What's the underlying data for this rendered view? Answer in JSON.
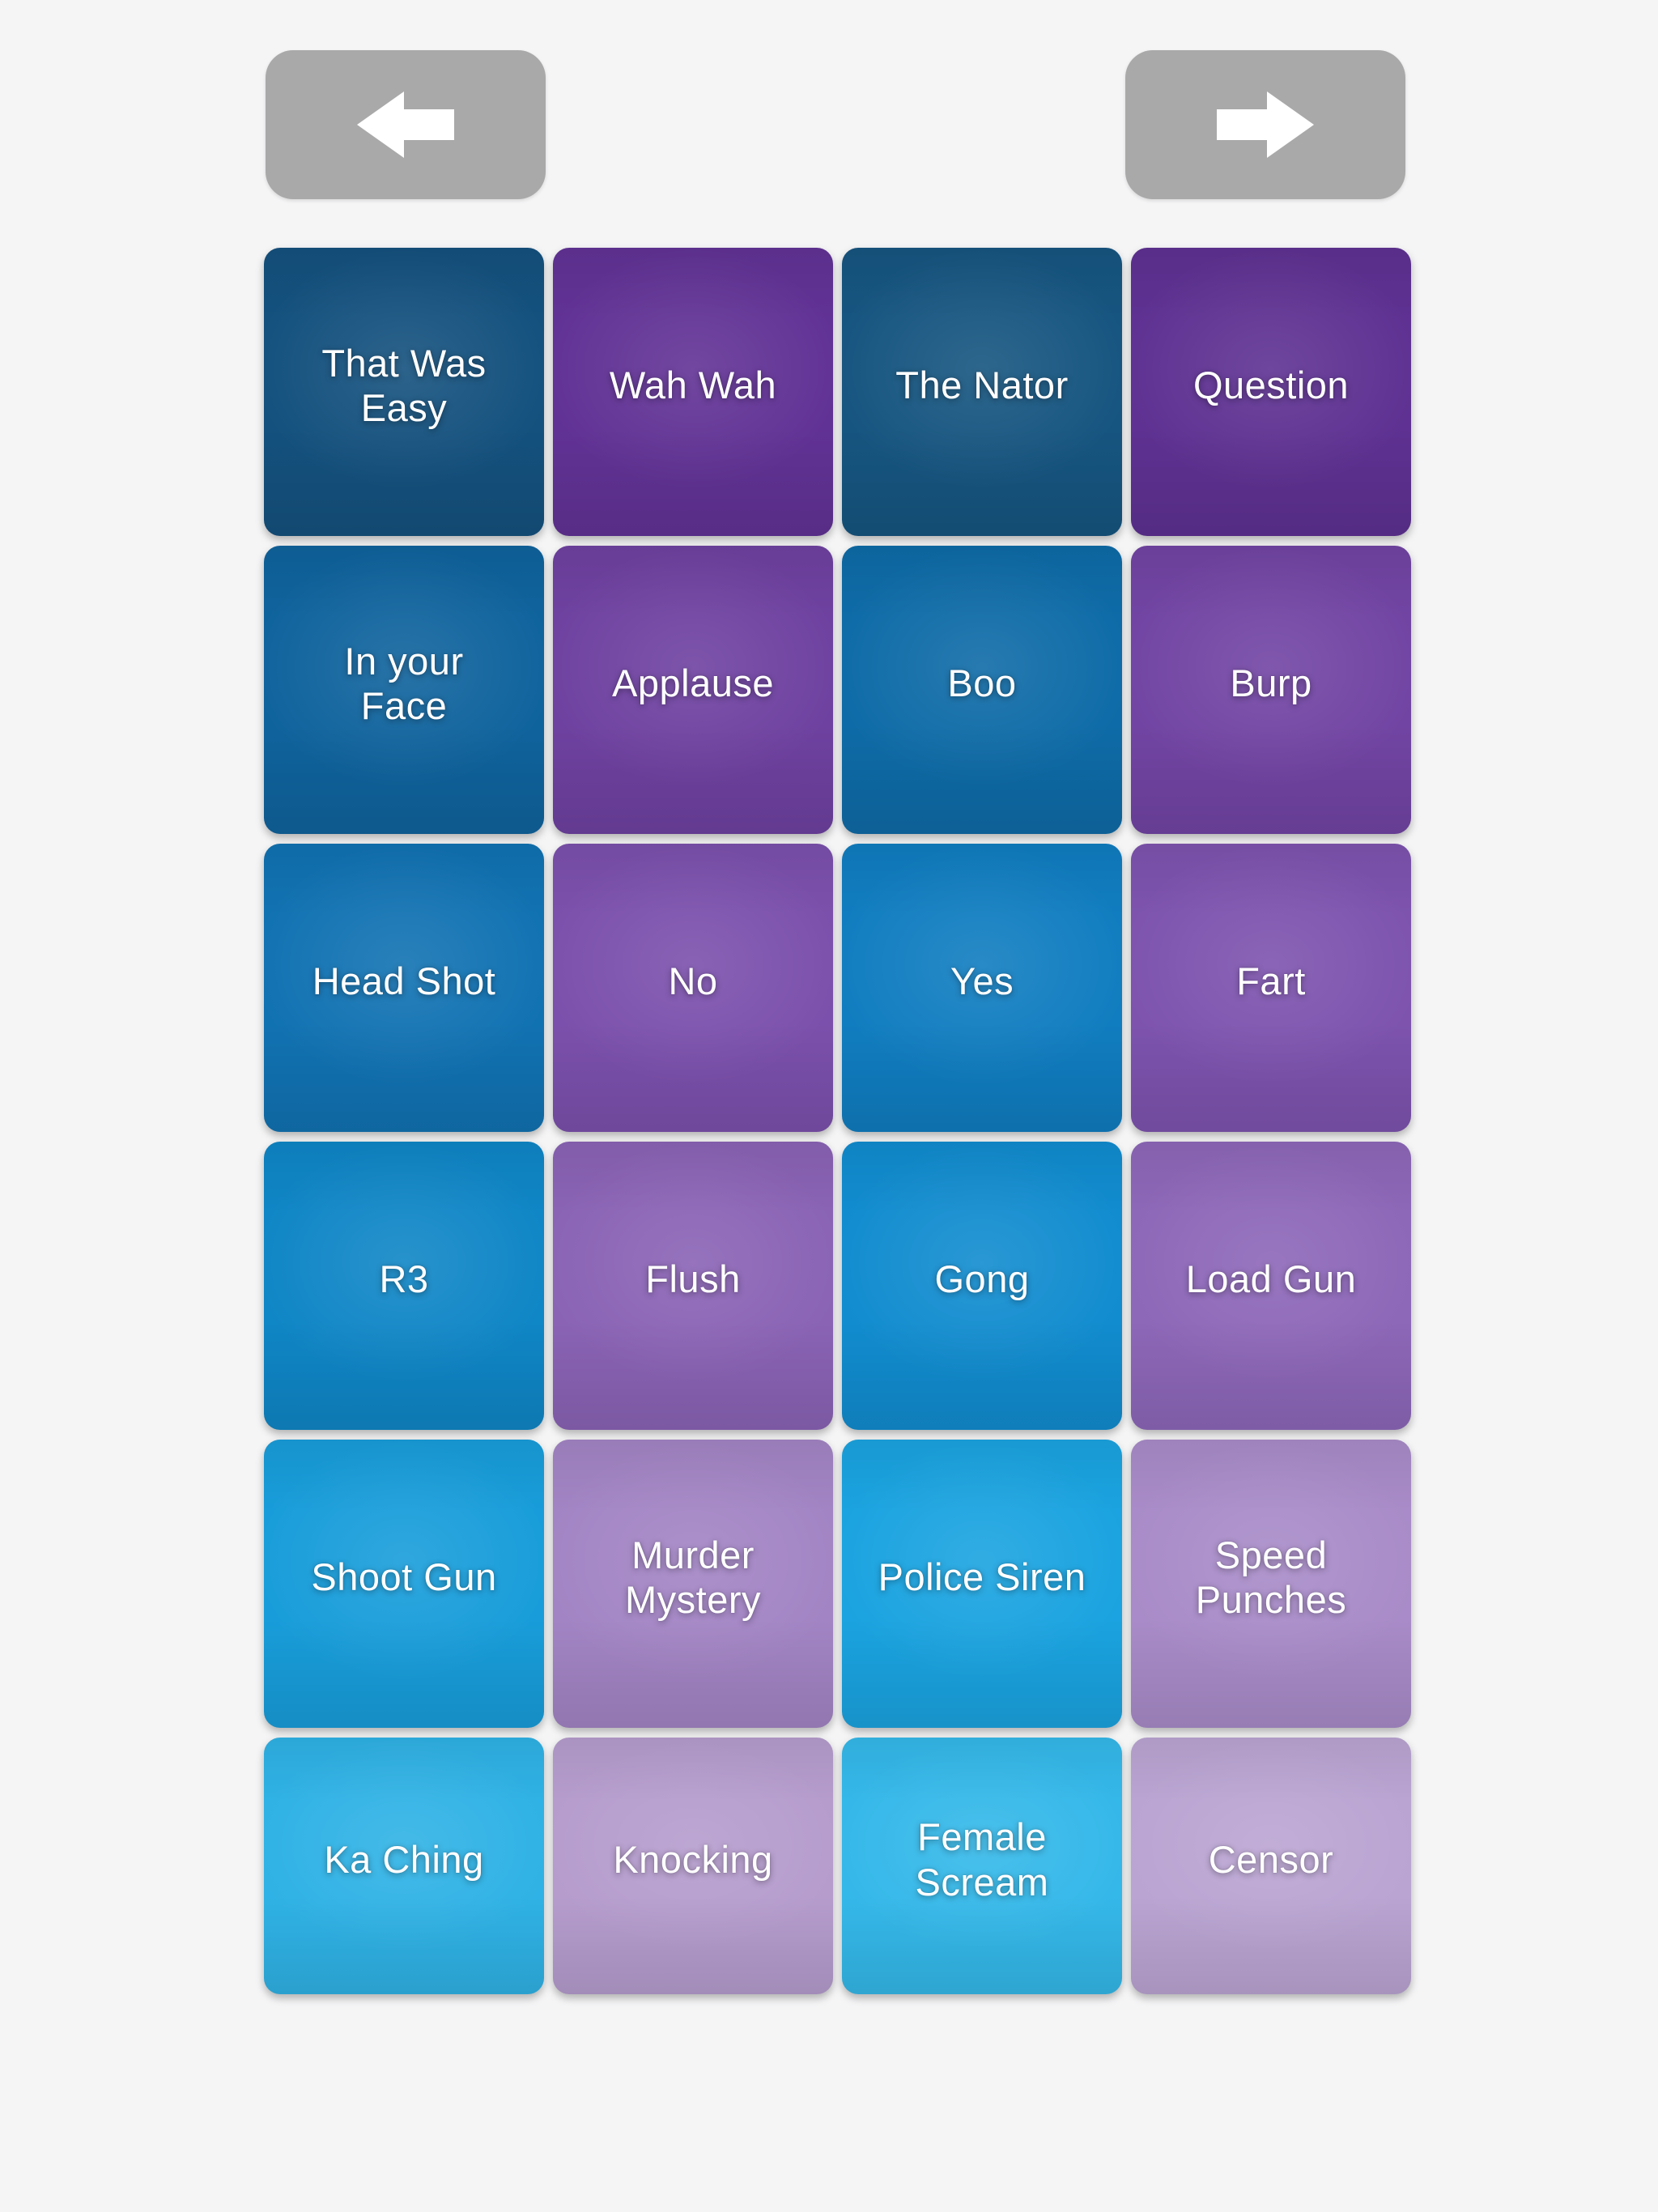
{
  "screen": {
    "background_color": "#f5f5f6"
  },
  "nav": {
    "button_color": "#a9a9a9",
    "arrow_color": "#ffffff",
    "prev_icon": "arrow-left-icon",
    "next_icon": "arrow-right-icon"
  },
  "grid": {
    "columns": 4,
    "rows": 6
  },
  "tiles": [
    {
      "label": "That Was\nEasy",
      "color": "#14517e"
    },
    {
      "label": "Wah Wah",
      "color": "#613295"
    },
    {
      "label": "The Nator",
      "color": "#165580"
    },
    {
      "label": "Question",
      "color": "#5e3192"
    },
    {
      "label": "In your\nFace",
      "color": "#0f639d"
    },
    {
      "label": "Applause",
      "color": "#6e41a0"
    },
    {
      "label": "Boo",
      "color": "#0e6ba7"
    },
    {
      "label": "Burp",
      "color": "#7144a3"
    },
    {
      "label": "Head Shot",
      "color": "#1172b2"
    },
    {
      "label": "No",
      "color": "#7b50ac"
    },
    {
      "label": "Yes",
      "color": "#107dc0"
    },
    {
      "label": "Fart",
      "color": "#7d53ae"
    },
    {
      "label": "R3",
      "color": "#0f86c6"
    },
    {
      "label": "Flush",
      "color": "#8a63b5"
    },
    {
      "label": "Gong",
      "color": "#118ccf"
    },
    {
      "label": "Load Gun",
      "color": "#8d67b8"
    },
    {
      "label": "Shoot Gun",
      "color": "#189dda"
    },
    {
      "label": "Murder\nMystery",
      "color": "#a284c4"
    },
    {
      "label": "Police Siren",
      "color": "#1aa3e0"
    },
    {
      "label": "Speed\nPunches",
      "color": "#a88bc8"
    },
    {
      "label": "Ka Ching",
      "color": "#2fb2e5"
    },
    {
      "label": "Knocking",
      "color": "#b59ccd"
    },
    {
      "label": "Female\nScream",
      "color": "#34b8e9"
    },
    {
      "label": "Censor",
      "color": "#baa4d2"
    }
  ]
}
